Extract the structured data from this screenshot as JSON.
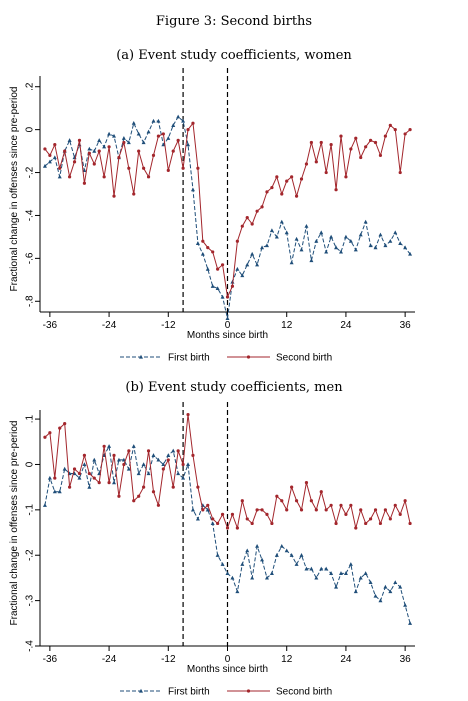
{
  "figure_title": "Figure 3: Second births",
  "chart_data": [
    {
      "type": "line",
      "title": "(a) Event study coefficients, women",
      "xlabel": "Months since birth",
      "ylabel": "Fractional change in offenses since pre-period",
      "xlim": [
        -38,
        38
      ],
      "ylim": [
        -0.85,
        0.25
      ],
      "xticks": [
        -36,
        -24,
        -12,
        0,
        12,
        24,
        36
      ],
      "xtick_labels": [
        "-36",
        "-24",
        "-12",
        "0",
        "12",
        "24",
        "36"
      ],
      "yticks": [
        0.2,
        0,
        -0.2,
        -0.4,
        -0.6,
        -0.8
      ],
      "ytick_labels": [
        ".2",
        "0",
        "-.2",
        "-.4",
        "-.6",
        "-.8"
      ],
      "vlines": [
        -9,
        0
      ],
      "grid": false,
      "legend_position": "bottom",
      "x": [
        -37,
        -36,
        -35,
        -34,
        -33,
        -32,
        -31,
        -30,
        -29,
        -28,
        -27,
        -26,
        -25,
        -24,
        -23,
        -22,
        -21,
        -20,
        -19,
        -18,
        -17,
        -16,
        -15,
        -14,
        -13,
        -12,
        -11,
        -10,
        -9,
        -8,
        -7,
        -6,
        -5,
        -4,
        -3,
        -2,
        -1,
        0,
        1,
        2,
        3,
        4,
        5,
        6,
        7,
        8,
        9,
        10,
        11,
        12,
        13,
        14,
        15,
        16,
        17,
        18,
        19,
        20,
        21,
        22,
        23,
        24,
        25,
        26,
        27,
        28,
        29,
        30,
        31,
        32,
        33,
        34,
        35,
        36,
        37
      ],
      "series": [
        {
          "name": "First birth",
          "color": "#1f4e79",
          "style": "dashed",
          "marker": "triangle",
          "values": [
            -0.17,
            -0.15,
            -0.13,
            -0.22,
            -0.1,
            -0.05,
            -0.13,
            -0.07,
            -0.19,
            -0.09,
            -0.1,
            -0.05,
            -0.08,
            -0.02,
            -0.03,
            -0.13,
            -0.04,
            -0.06,
            0.03,
            -0.02,
            -0.06,
            -0.01,
            0.04,
            0.04,
            -0.07,
            -0.04,
            0.02,
            0.06,
            0.04,
            -0.07,
            -0.28,
            -0.53,
            -0.58,
            -0.65,
            -0.73,
            -0.74,
            -0.78,
            -0.88,
            -0.71,
            -0.65,
            -0.68,
            -0.63,
            -0.58,
            -0.63,
            -0.55,
            -0.54,
            -0.47,
            -0.5,
            -0.43,
            -0.48,
            -0.62,
            -0.51,
            -0.56,
            -0.45,
            -0.61,
            -0.52,
            -0.48,
            -0.57,
            -0.5,
            -0.55,
            -0.57,
            -0.5,
            -0.52,
            -0.56,
            -0.49,
            -0.43,
            -0.54,
            -0.55,
            -0.49,
            -0.54,
            -0.52,
            -0.48,
            -0.53,
            -0.55,
            -0.58
          ]
        },
        {
          "name": "Second birth",
          "color": "#a3262c",
          "style": "solid",
          "marker": "dot",
          "values": [
            -0.09,
            -0.12,
            -0.07,
            -0.18,
            -0.1,
            -0.22,
            -0.15,
            -0.05,
            -0.25,
            -0.11,
            -0.16,
            -0.1,
            -0.22,
            -0.08,
            -0.31,
            -0.13,
            -0.06,
            -0.18,
            -0.3,
            -0.1,
            -0.18,
            -0.22,
            -0.12,
            -0.03,
            -0.02,
            -0.19,
            -0.1,
            -0.05,
            -0.18,
            0.0,
            0.03,
            -0.18,
            -0.52,
            -0.55,
            -0.57,
            -0.65,
            -0.63,
            -0.78,
            -0.73,
            -0.52,
            -0.45,
            -0.41,
            -0.44,
            -0.38,
            -0.36,
            -0.29,
            -0.27,
            -0.22,
            -0.3,
            -0.24,
            -0.22,
            -0.31,
            -0.23,
            -0.16,
            -0.06,
            -0.15,
            -0.06,
            -0.2,
            -0.07,
            -0.28,
            -0.03,
            -0.22,
            -0.09,
            -0.04,
            -0.13,
            -0.08,
            -0.05,
            -0.06,
            -0.12,
            -0.03,
            0.02,
            0.0,
            -0.2,
            -0.02,
            0.0
          ]
        }
      ]
    },
    {
      "type": "line",
      "title": "(b) Event study coefficients, men",
      "xlabel": "Months since birth",
      "ylabel": "Fractional change in offenses since pre-period",
      "xlim": [
        -38,
        38
      ],
      "ylim": [
        -0.4,
        0.12
      ],
      "xticks": [
        -36,
        -24,
        -12,
        0,
        12,
        24,
        36
      ],
      "xtick_labels": [
        "-36",
        "-24",
        "-12",
        "0",
        "12",
        "24",
        "36"
      ],
      "yticks": [
        0.1,
        0,
        -0.1,
        -0.2,
        -0.3,
        -0.4
      ],
      "ytick_labels": [
        ".1",
        "0",
        "-.1",
        "-.2",
        "-.3",
        "-.4"
      ],
      "vlines": [
        -9,
        0
      ],
      "grid": false,
      "legend_position": "bottom",
      "x": [
        -37,
        -36,
        -35,
        -34,
        -33,
        -32,
        -31,
        -30,
        -29,
        -28,
        -27,
        -26,
        -25,
        -24,
        -23,
        -22,
        -21,
        -20,
        -19,
        -18,
        -17,
        -16,
        -15,
        -14,
        -13,
        -12,
        -11,
        -10,
        -9,
        -8,
        -7,
        -6,
        -5,
        -4,
        -3,
        -2,
        -1,
        0,
        1,
        2,
        3,
        4,
        5,
        6,
        7,
        8,
        9,
        10,
        11,
        12,
        13,
        14,
        15,
        16,
        17,
        18,
        19,
        20,
        21,
        22,
        23,
        24,
        25,
        26,
        27,
        28,
        29,
        30,
        31,
        32,
        33,
        34,
        35,
        36,
        37
      ],
      "series": [
        {
          "name": "First birth",
          "color": "#1f4e79",
          "style": "dashed",
          "marker": "triangle",
          "values": [
            -0.09,
            -0.03,
            -0.06,
            -0.06,
            -0.01,
            -0.02,
            -0.02,
            -0.03,
            0.0,
            -0.05,
            0.01,
            -0.02,
            0.02,
            0.04,
            -0.04,
            0.01,
            0.01,
            -0.01,
            0.04,
            -0.02,
            0.0,
            -0.02,
            0.02,
            0.01,
            0.0,
            0.02,
            0.03,
            -0.02,
            -0.03,
            0.0,
            -0.1,
            -0.12,
            -0.09,
            -0.1,
            -0.13,
            -0.2,
            -0.22,
            -0.24,
            -0.25,
            -0.28,
            -0.22,
            -0.19,
            -0.25,
            -0.18,
            -0.21,
            -0.25,
            -0.24,
            -0.2,
            -0.18,
            -0.19,
            -0.2,
            -0.22,
            -0.2,
            -0.23,
            -0.23,
            -0.25,
            -0.23,
            -0.23,
            -0.24,
            -0.27,
            -0.24,
            -0.24,
            -0.22,
            -0.28,
            -0.25,
            -0.24,
            -0.26,
            -0.29,
            -0.3,
            -0.27,
            -0.28,
            -0.26,
            -0.27,
            -0.31,
            -0.35
          ]
        },
        {
          "name": "Second birth",
          "color": "#a3262c",
          "style": "solid",
          "marker": "dot",
          "values": [
            0.06,
            0.07,
            -0.03,
            0.08,
            0.09,
            -0.05,
            -0.01,
            -0.02,
            0.02,
            -0.02,
            -0.03,
            -0.04,
            0.04,
            -0.04,
            0.02,
            -0.07,
            0.0,
            0.03,
            -0.08,
            -0.07,
            -0.05,
            0.03,
            -0.06,
            -0.09,
            -0.01,
            0.01,
            -0.05,
            0.03,
            0.0,
            0.11,
            0.02,
            -0.05,
            -0.1,
            -0.09,
            -0.12,
            -0.13,
            -0.11,
            -0.14,
            -0.11,
            -0.14,
            -0.08,
            -0.12,
            -0.13,
            -0.1,
            -0.1,
            -0.11,
            -0.13,
            -0.07,
            -0.08,
            -0.1,
            -0.05,
            -0.08,
            -0.1,
            -0.04,
            -0.08,
            -0.1,
            -0.06,
            -0.1,
            -0.09,
            -0.13,
            -0.09,
            -0.11,
            -0.09,
            -0.14,
            -0.1,
            -0.13,
            -0.12,
            -0.1,
            -0.13,
            -0.1,
            -0.12,
            -0.09,
            -0.11,
            -0.08,
            -0.13
          ]
        }
      ]
    }
  ]
}
